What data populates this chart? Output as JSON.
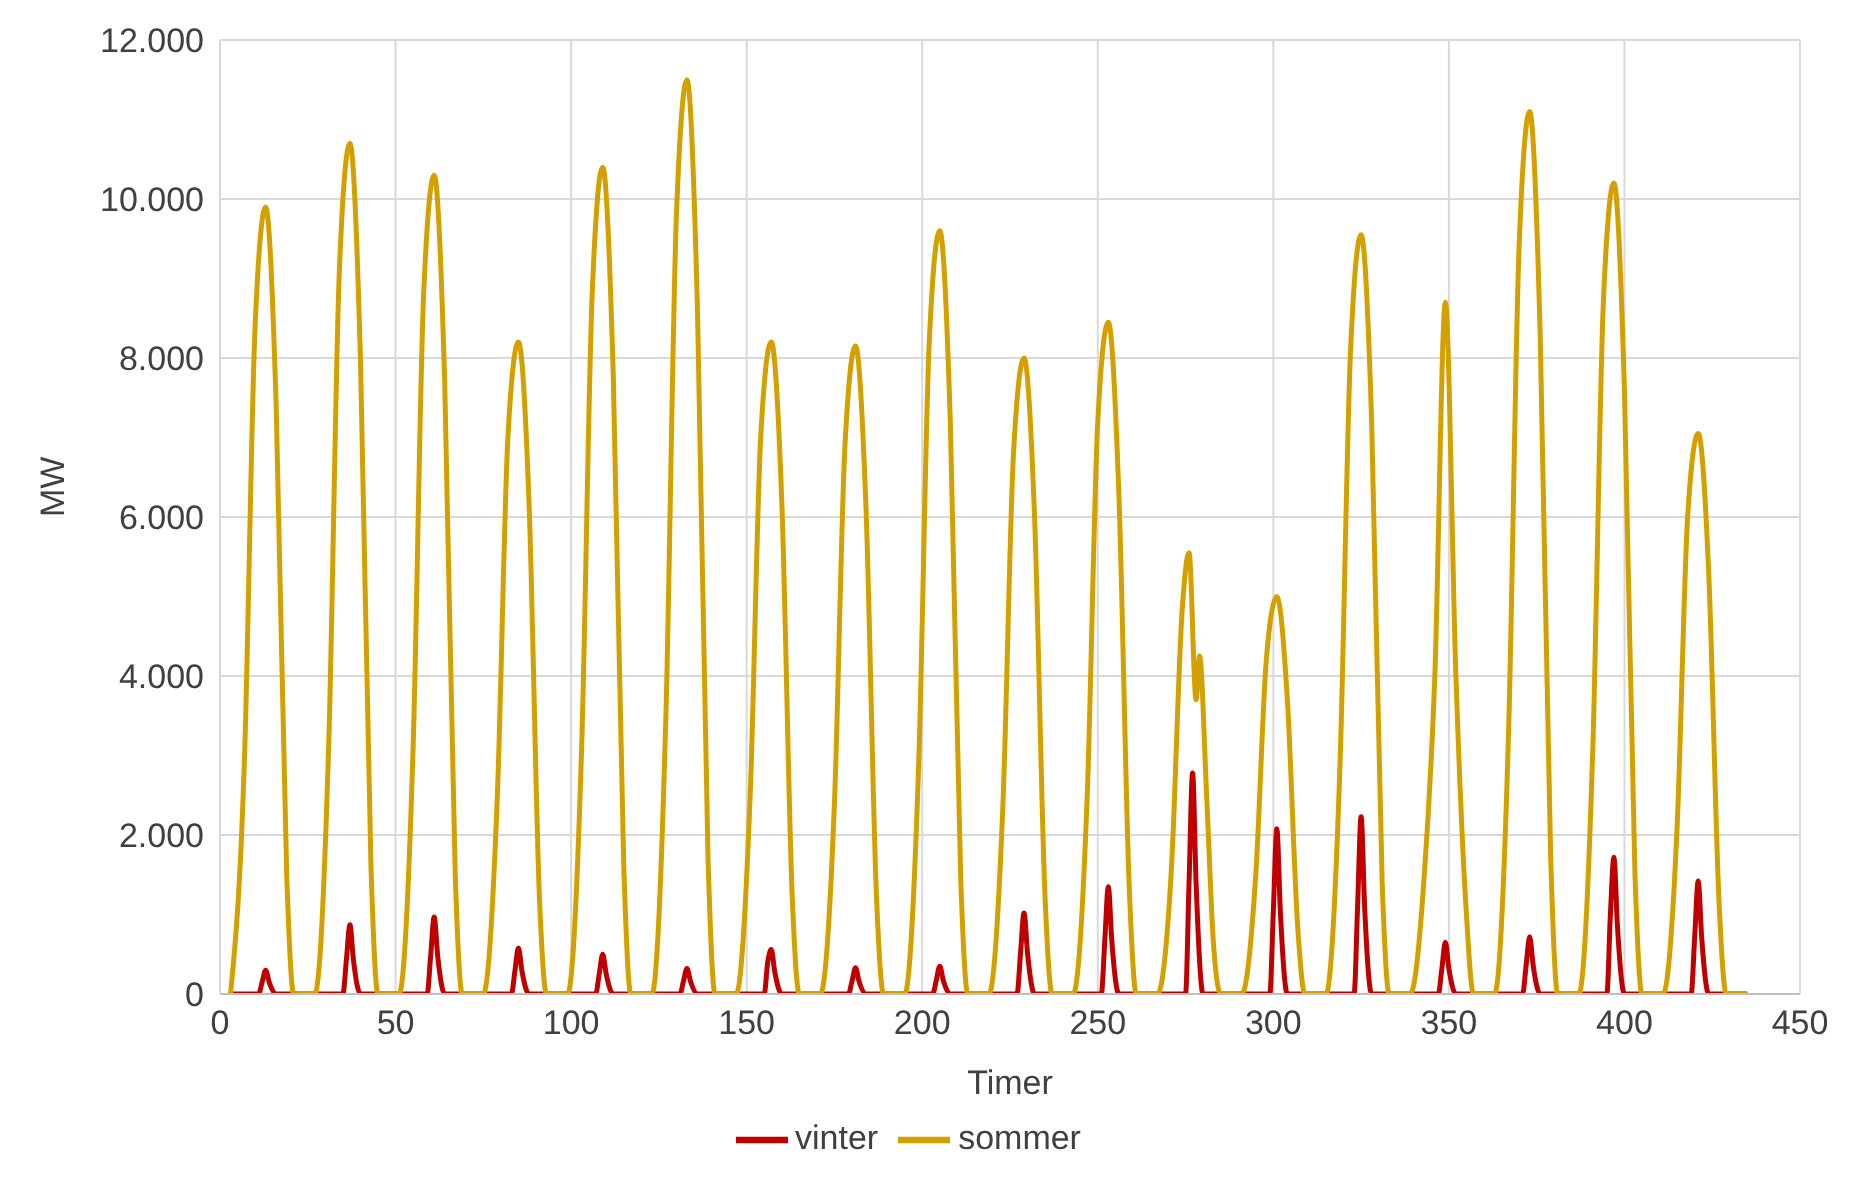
{
  "chart_data": {
    "type": "line",
    "xlabel": "Timer",
    "ylabel": "MW",
    "xlim": [
      0,
      450
    ],
    "xticks": [
      0,
      50,
      100,
      150,
      200,
      250,
      300,
      350,
      400,
      450
    ],
    "ylim": [
      0,
      12000
    ],
    "yticks": [
      {
        "value": 0,
        "label": "0"
      },
      {
        "value": 2000,
        "label": "2.000"
      },
      {
        "value": 4000,
        "label": "4.000"
      },
      {
        "value": 6000,
        "label": "6.000"
      },
      {
        "value": 8000,
        "label": "8.000"
      },
      {
        "value": 10000,
        "label": "10.000"
      },
      {
        "value": 12000,
        "label": "12.000"
      }
    ],
    "grid": true,
    "legend": "bottom",
    "marker": "none",
    "line_style": "solid",
    "series": [
      {
        "name": "vinter",
        "color": "#c00000",
        "x": [
          3,
          11,
          12,
          13,
          14,
          16,
          35,
          36,
          37,
          38,
          40,
          59,
          60,
          61,
          62,
          64,
          83,
          84,
          85,
          86,
          88,
          107,
          108,
          109,
          110,
          112,
          131,
          132,
          133,
          134,
          136,
          155,
          156,
          157,
          158,
          160,
          179,
          180,
          181,
          182,
          184,
          203,
          204,
          205,
          206,
          208,
          227,
          228,
          229,
          230,
          232,
          251,
          252,
          253,
          254,
          256,
          275,
          276,
          277,
          278,
          280,
          299,
          300,
          301,
          302,
          304,
          323,
          324,
          325,
          326,
          328,
          347,
          348,
          349,
          350,
          352,
          371,
          372,
          373,
          374,
          376,
          395,
          396,
          397,
          398,
          400,
          419,
          420,
          421,
          422,
          424,
          435
        ],
        "values": [
          0,
          0,
          150,
          300,
          150,
          0,
          0,
          430,
          870,
          430,
          0,
          0,
          480,
          970,
          480,
          0,
          0,
          290,
          580,
          290,
          0,
          0,
          250,
          500,
          250,
          0,
          0,
          160,
          320,
          160,
          0,
          0,
          400,
          560,
          280,
          0,
          0,
          160,
          330,
          160,
          0,
          0,
          170,
          350,
          170,
          0,
          0,
          510,
          1020,
          510,
          0,
          0,
          670,
          1350,
          670,
          0,
          0,
          1400,
          2780,
          1400,
          0,
          0,
          1040,
          2080,
          1040,
          0,
          0,
          1100,
          2230,
          1100,
          0,
          0,
          320,
          650,
          320,
          0,
          0,
          360,
          720,
          360,
          0,
          0,
          1000,
          1720,
          860,
          0,
          0,
          710,
          1420,
          710,
          0,
          0
        ]
      },
      {
        "name": "sommer",
        "color": "#d4a000",
        "x": [
          3,
          7,
          10,
          13,
          16,
          19,
          21,
          27,
          31,
          34,
          37,
          40,
          43,
          45,
          51,
          55,
          58,
          61,
          64,
          67,
          69,
          75,
          79,
          82,
          85,
          88,
          91,
          93,
          99,
          103,
          106,
          109,
          112,
          115,
          117,
          123,
          127,
          130,
          133,
          136,
          139,
          141,
          147,
          151,
          154,
          157,
          160,
          163,
          165,
          171,
          175,
          178,
          181,
          184,
          187,
          189,
          195,
          199,
          202,
          205,
          208,
          211,
          213,
          219,
          223,
          226,
          229,
          232,
          235,
          237,
          243,
          247,
          250,
          253,
          256,
          259,
          261,
          267,
          271,
          274,
          276,
          278,
          279,
          281,
          283,
          285,
          291,
          295,
          298,
          301,
          304,
          307,
          309,
          315,
          319,
          322,
          325,
          328,
          331,
          333,
          339,
          343,
          346,
          349,
          352,
          355,
          357,
          363,
          367,
          370,
          373,
          376,
          379,
          381,
          387,
          391,
          394,
          397,
          400,
          403,
          405,
          411,
          415,
          418,
          421,
          424,
          427,
          429,
          435
        ],
        "values": [
          0,
          3000,
          8400,
          9900,
          7400,
          1500,
          0,
          0,
          3200,
          9100,
          10700,
          8000,
          1600,
          0,
          0,
          3100,
          8800,
          10300,
          7700,
          1500,
          0,
          0,
          2500,
          7000,
          8200,
          6200,
          1200,
          0,
          0,
          3100,
          8800,
          10400,
          7800,
          1600,
          0,
          0,
          3500,
          9800,
          11500,
          8600,
          1700,
          0,
          0,
          2500,
          7000,
          8200,
          6200,
          1200,
          0,
          0,
          2400,
          6900,
          8150,
          6100,
          1200,
          0,
          0,
          2900,
          8200,
          9600,
          7200,
          1400,
          0,
          0,
          2400,
          6800,
          8000,
          6000,
          1200,
          0,
          0,
          2500,
          7200,
          8450,
          6300,
          1300,
          0,
          0,
          1600,
          4800,
          5550,
          3700,
          4250,
          2500,
          600,
          0,
          0,
          1500,
          4200,
          5000,
          3700,
          800,
          0,
          0,
          2900,
          8100,
          9550,
          7200,
          1400,
          0,
          0,
          1500,
          4000,
          8700,
          4000,
          1000,
          0,
          0,
          3300,
          9400,
          11100,
          8300,
          1700,
          0,
          0,
          3100,
          8700,
          10200,
          7600,
          1500,
          0,
          0,
          2100,
          6000,
          7050,
          5300,
          1100,
          0,
          0
        ]
      }
    ]
  }
}
